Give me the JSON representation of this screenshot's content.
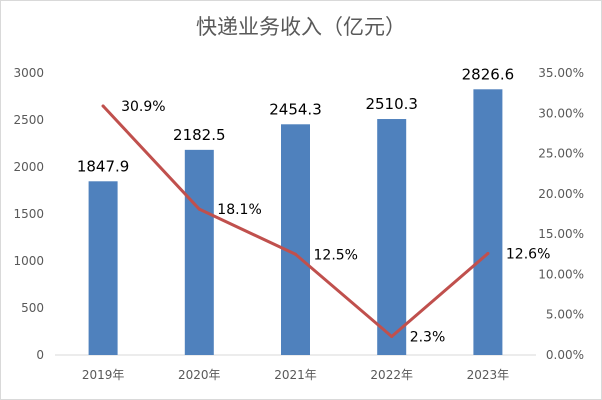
{
  "chart_data": {
    "type": "bar",
    "title": "快递业务收入（亿元）",
    "categories": [
      "2019年",
      "2020年",
      "2021年",
      "2022年",
      "2023年"
    ],
    "series": [
      {
        "type": "bar",
        "axis": "left",
        "color": "#4f81bd",
        "values": [
          1847.9,
          2182.5,
          2454.3,
          2510.3,
          2826.6
        ],
        "labels": [
          "1847.9",
          "2182.5",
          "2454.3",
          "2510.3",
          "2826.6"
        ]
      },
      {
        "type": "line",
        "axis": "right",
        "color": "#c0504d",
        "values": [
          30.9,
          18.1,
          12.5,
          2.3,
          12.6
        ],
        "labels": [
          "30.9%",
          "18.1%",
          "12.5%",
          "2.3%",
          "12.6%"
        ]
      }
    ],
    "y_left": {
      "ylim": [
        0,
        3000
      ],
      "ticks": [
        "0",
        "500",
        "1000",
        "1500",
        "2000",
        "2500",
        "3000"
      ]
    },
    "y_right": {
      "ylim": [
        0,
        35
      ],
      "ticks": [
        "0.00%",
        "5.00%",
        "10.00%",
        "15.00%",
        "20.00%",
        "25.00%",
        "30.00%",
        "35.00%"
      ]
    },
    "grid": false,
    "legend": "none"
  }
}
